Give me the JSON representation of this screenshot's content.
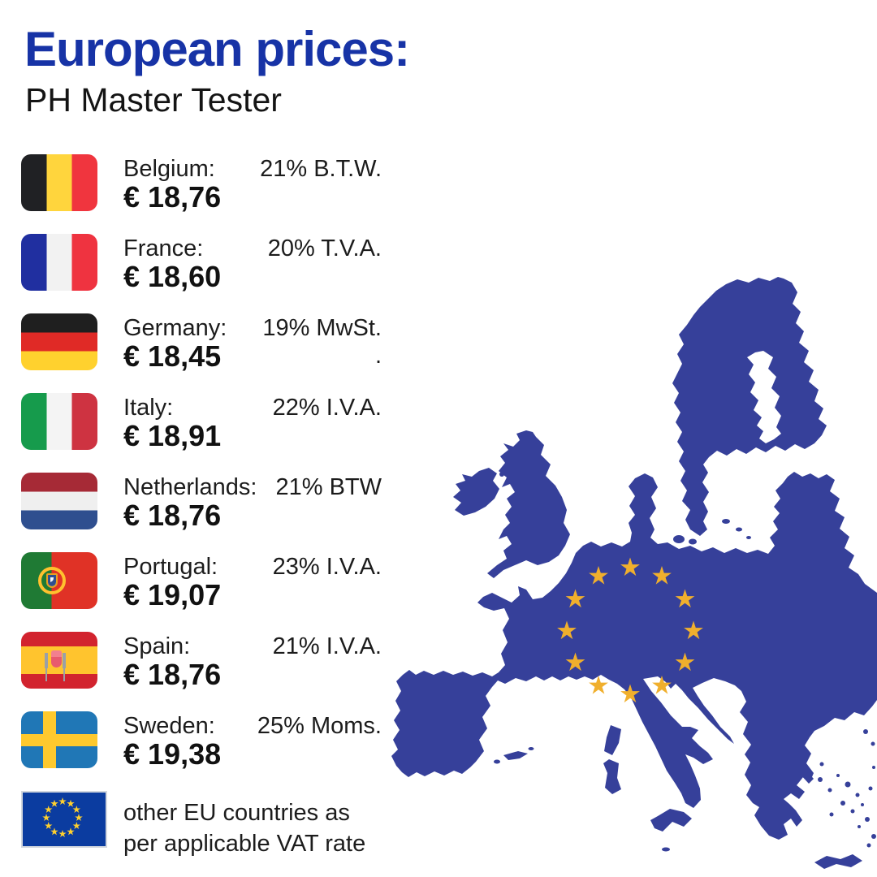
{
  "title": "European prices:",
  "subtitle": "PH Master Tester",
  "colors": {
    "title_blue": "#1733A6",
    "map_blue": "#36409A",
    "map_star_gold": "#F0AF2D",
    "eu_flag_blue": "#0B3CA0"
  },
  "countries": [
    {
      "flag": "be",
      "flag_icon": "belgium-flag-icon",
      "label": "Belgium:",
      "price": "€ 18,76",
      "vat": "21% B.T.W.",
      "vat_note": ""
    },
    {
      "flag": "fr",
      "flag_icon": "france-flag-icon",
      "label": "France:",
      "price": "€ 18,60",
      "vat": "20% T.V.A.",
      "vat_note": ""
    },
    {
      "flag": "de",
      "flag_icon": "germany-flag-icon",
      "label": "Germany:",
      "price": "€ 18,45",
      "vat": "19% MwSt.",
      "vat_note": "."
    },
    {
      "flag": "it",
      "flag_icon": "italy-flag-icon",
      "label": "Italy:",
      "price": "€ 18,91",
      "vat": "22% I.V.A.",
      "vat_note": ""
    },
    {
      "flag": "nl",
      "flag_icon": "netherlands-flag-icon",
      "label": "Netherlands:",
      "price": "€ 18,76",
      "vat": "21% BTW",
      "vat_note": ""
    },
    {
      "flag": "pt",
      "flag_icon": "portugal-flag-icon",
      "label": "Portugal:",
      "price": "€ 19,07",
      "vat": "23% I.V.A.",
      "vat_note": ""
    },
    {
      "flag": "es",
      "flag_icon": "spain-flag-icon",
      "label": "Spain:",
      "price": "€ 18,76",
      "vat": "21% I.V.A.",
      "vat_note": ""
    },
    {
      "flag": "se",
      "flag_icon": "sweden-flag-icon",
      "label": "Sweden:",
      "price": "€ 19,38",
      "vat": "25% Moms.",
      "vat_note": ""
    }
  ],
  "footer": {
    "flag_icon": "eu-flag-icon",
    "line1": "other EU countries as",
    "line2": "per applicable VAT rate"
  }
}
